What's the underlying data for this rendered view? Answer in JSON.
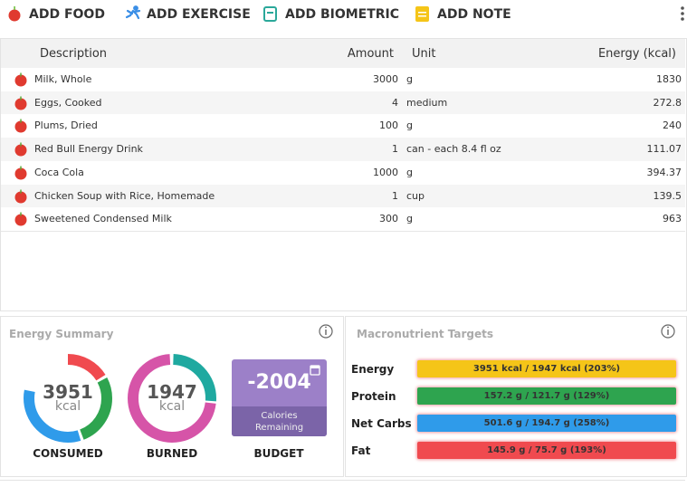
{
  "toolbar": [
    "ADD FOOD",
    "ADD EXERCISE",
    "ADD BIOMETRIC",
    "ADD NOTE"
  ],
  "table": {
    "headers": [
      "Description",
      "Amount",
      "Unit",
      "Energy (kcal)"
    ],
    "rows": [
      [
        "Milk, Whole",
        3000,
        "g",
        1830
      ],
      [
        "Eggs, Cooked",
        4,
        "medium",
        272.8
      ],
      [
        "Plums, Dried",
        100,
        "g",
        240
      ],
      [
        "Red Bull Energy Drink",
        1,
        "can - each 8.4 fl oz",
        111.07
      ],
      [
        "Coca Cola",
        1000,
        "g",
        394.37
      ],
      [
        "Chicken Soup with Rice, Homemade",
        1,
        "cup",
        139.5
      ],
      [
        "Sweetened Condensed Milk",
        300,
        "g",
        963
      ]
    ]
  },
  "energy_summary": {
    "title": "Energy Summary",
    "consumed": {
      "value": 3951,
      "unit": "kcal",
      "label": "CONSUMED"
    },
    "burned": {
      "value": 1947,
      "unit": "kcal",
      "label": "BURNED"
    },
    "budget": {
      "value": -2004,
      "note": "Calories Remaining",
      "label": "BUDGET"
    }
  },
  "macronutrients": {
    "title": "Macronutrient Targets",
    "rows": [
      {
        "name": "Energy",
        "text": "3951 kcal / 1947 kcal (203%)",
        "color": "#f5c518"
      },
      {
        "name": "Protein",
        "text": "157.2 g / 121.7 g (129%)",
        "color": "#2ea44f"
      },
      {
        "name": "Net Carbs",
        "text": "501.6 g / 194.7 g (258%)",
        "color": "#2f9bea"
      },
      {
        "name": "Fat",
        "text": "145.9 g / 75.7 g (193%)",
        "color": "#f04a4f"
      }
    ]
  }
}
